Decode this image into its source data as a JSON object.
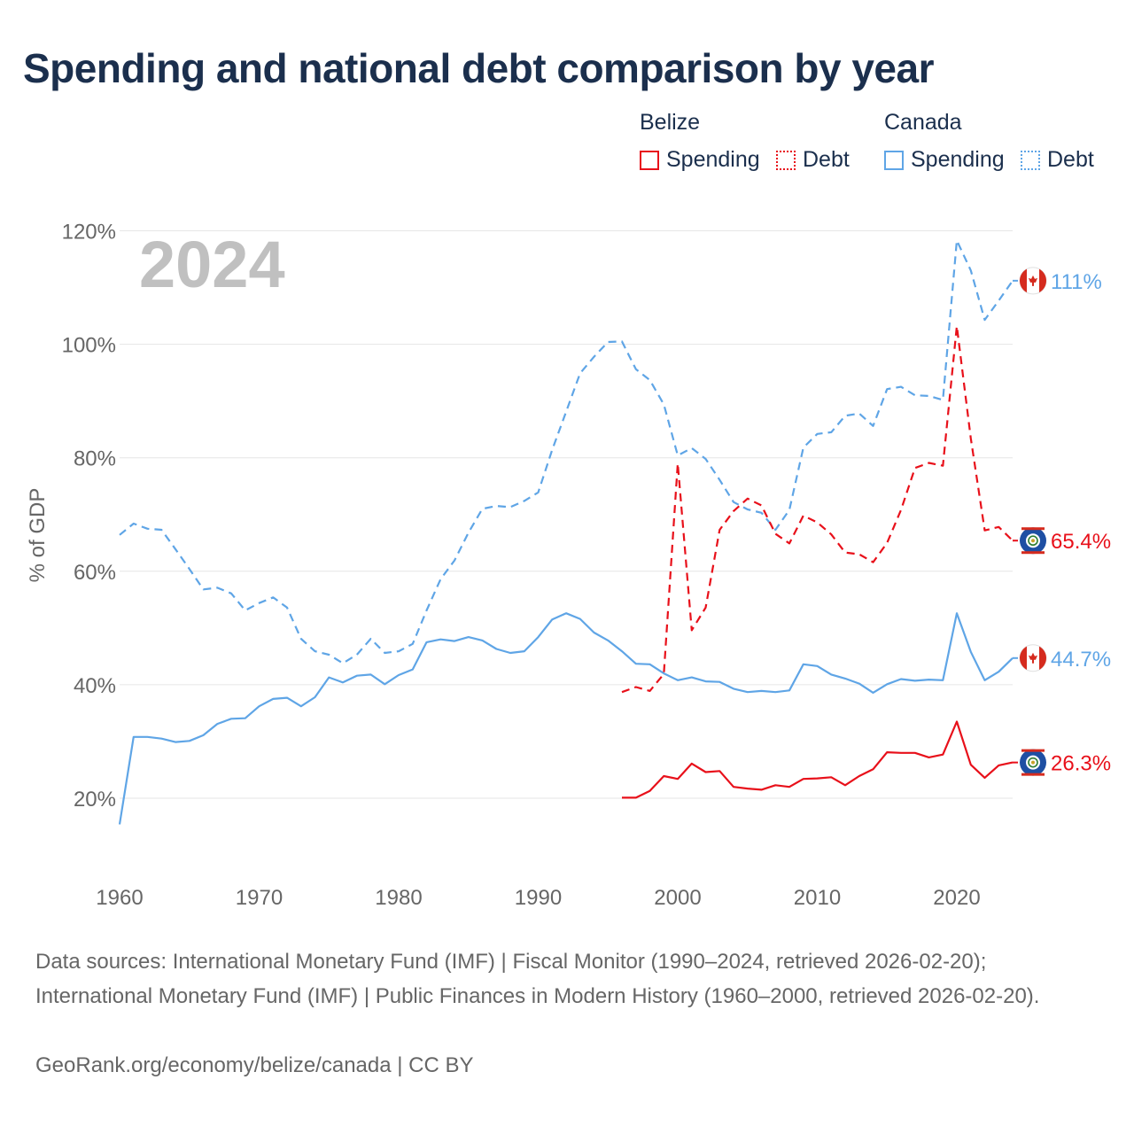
{
  "title": "Spending and national debt comparison by year",
  "legend": {
    "belize_label": "Belize",
    "canada_label": "Canada",
    "spending_label": "Spending",
    "debt_label": "Debt"
  },
  "colors": {
    "belize": "#e8101a",
    "canada": "#5fa5e6",
    "grid": "#e6e6e6",
    "year_watermark": "#c0c0c0"
  },
  "year_watermark": "2024",
  "end_labels": {
    "canada_debt": "111%",
    "belize_debt": "65.4%",
    "canada_spending": "44.7%",
    "belize_spending": "26.3%"
  },
  "footer": {
    "sources": "Data sources: International Monetary Fund (IMF) | Fiscal Monitor (1990–2024, retrieved 2026-02-20); International Monetary Fund (IMF) | Public Finances in Modern History (1960–2000, retrieved 2026-02-20).",
    "credit": "GeoRank.org/economy/belize/canada | CC BY"
  },
  "chart_data": {
    "type": "line",
    "ylabel": "% of GDP",
    "xlabel": "",
    "xlim": [
      1960,
      2024
    ],
    "ylim": [
      8,
      120
    ],
    "x_ticks": [
      1960,
      1970,
      1980,
      1990,
      2000,
      2010,
      2020
    ],
    "y_ticks": [
      20,
      40,
      60,
      80,
      100,
      120
    ],
    "y_tick_labels": [
      "20%",
      "40%",
      "60%",
      "80%",
      "100%",
      "120%"
    ],
    "series": [
      {
        "name": "Canada Debt",
        "country": "Canada",
        "metric": "Debt",
        "style": "dashed",
        "start_year": 1960,
        "values": [
          66.4,
          68.4,
          67.5,
          67.3,
          63.9,
          60.4,
          56.8,
          57.1,
          56.1,
          53.1,
          54.4,
          55.4,
          53.6,
          48.1,
          45.9,
          45.3,
          43.8,
          45.3,
          48.1,
          45.6,
          45.9,
          47.2,
          53.1,
          58.6,
          61.9,
          66.8,
          71.0,
          71.5,
          71.3,
          72.4,
          73.9,
          81.4,
          88.1,
          94.9,
          97.8,
          100.4,
          100.5,
          95.6,
          93.7,
          89.4,
          80.4,
          81.7,
          79.8,
          76.1,
          72.2,
          70.9,
          70.3,
          67.3,
          70.8,
          81.8,
          84.2,
          84.5,
          87.4,
          87.8,
          85.6,
          92.1,
          92.5,
          91.0,
          90.9,
          90.2,
          118.3,
          113.0,
          104.3,
          107.7,
          111.2
        ]
      },
      {
        "name": "Canada Spending",
        "country": "Canada",
        "metric": "Spending",
        "style": "solid",
        "start_year": 1960,
        "values": [
          15.4,
          30.8,
          30.8,
          30.5,
          29.9,
          30.1,
          31.1,
          33.1,
          34.0,
          34.1,
          36.2,
          37.5,
          37.7,
          36.2,
          37.8,
          41.3,
          40.4,
          41.6,
          41.8,
          40.1,
          41.7,
          42.7,
          47.5,
          48.0,
          47.7,
          48.4,
          47.8,
          46.3,
          45.6,
          45.9,
          48.4,
          51.5,
          52.6,
          51.6,
          49.2,
          47.8,
          45.9,
          43.7,
          43.6,
          42.0,
          40.8,
          41.3,
          40.6,
          40.5,
          39.3,
          38.7,
          38.9,
          38.7,
          39.0,
          43.6,
          43.3,
          41.8,
          41.1,
          40.2,
          38.6,
          40.1,
          41.0,
          40.7,
          40.9,
          40.8,
          52.6,
          45.8,
          40.8,
          42.3,
          44.7
        ]
      },
      {
        "name": "Belize Debt",
        "country": "Belize",
        "metric": "Debt",
        "style": "dashed",
        "start_year": 1996,
        "values": [
          38.7,
          39.6,
          38.9,
          41.9,
          79.0,
          49.6,
          53.6,
          67.3,
          70.6,
          72.8,
          71.6,
          66.6,
          64.9,
          69.8,
          68.6,
          66.5,
          63.3,
          63.0,
          61.6,
          65.0,
          70.8,
          78.2,
          79.1,
          78.6,
          103.2,
          83.4,
          67.2,
          67.8,
          65.4
        ]
      },
      {
        "name": "Belize Spending",
        "country": "Belize",
        "metric": "Spending",
        "style": "solid",
        "start_year": 1996,
        "values": [
          20.1,
          20.1,
          21.3,
          23.9,
          23.4,
          26.1,
          24.6,
          24.8,
          22.0,
          21.7,
          21.5,
          22.3,
          22.0,
          23.4,
          23.5,
          23.7,
          22.3,
          23.9,
          25.1,
          28.1,
          28.0,
          28.0,
          27.2,
          27.7,
          33.5,
          25.9,
          23.6,
          25.8,
          26.3
        ]
      }
    ]
  }
}
